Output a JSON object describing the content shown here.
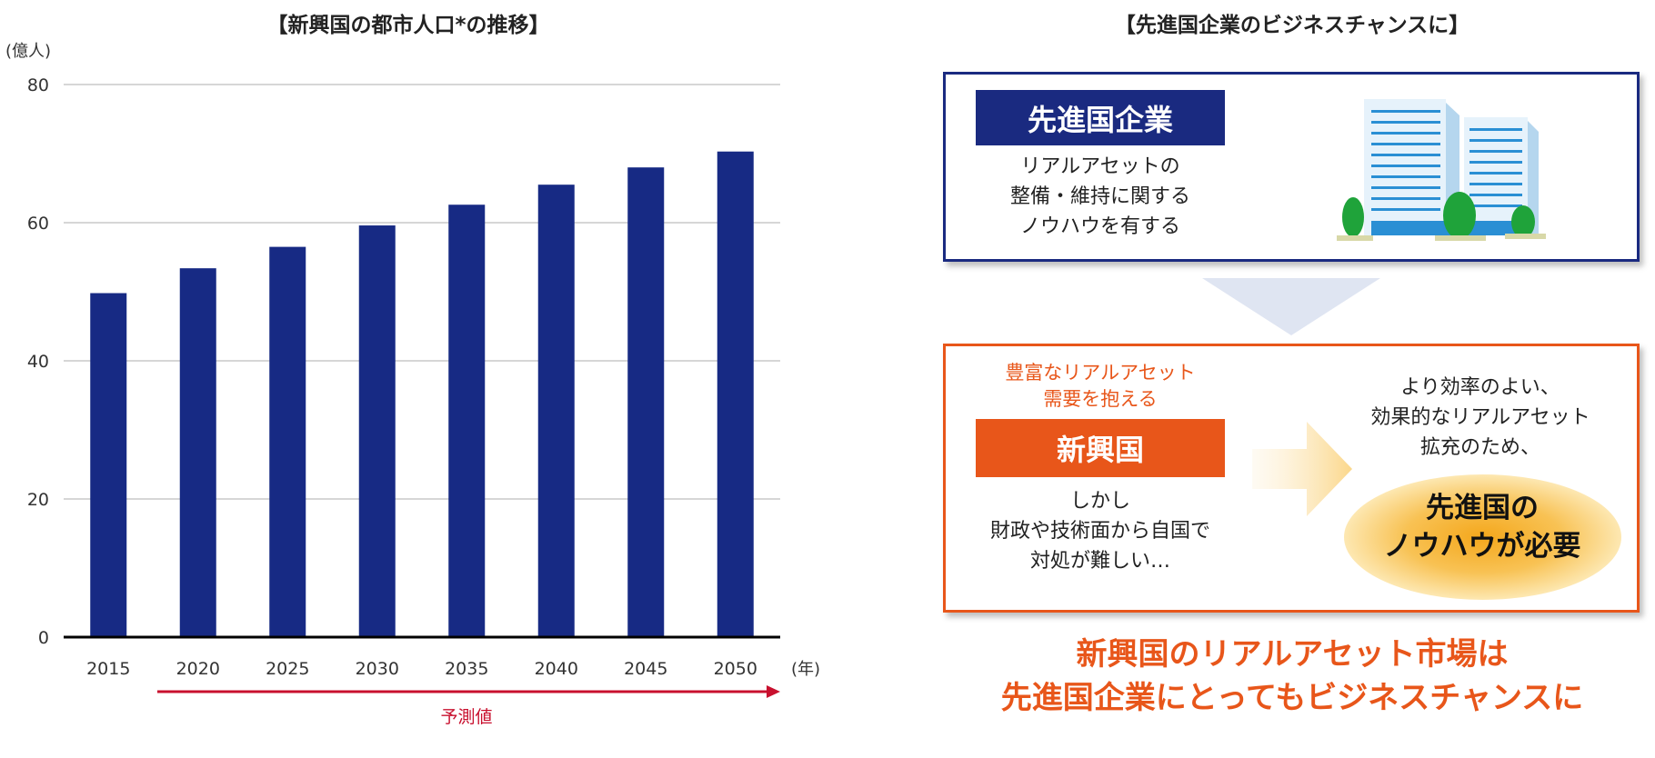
{
  "chart_data": {
    "type": "bar",
    "title": "【新興国の都市人口*の推移】",
    "ylabel": "(億人)",
    "xlabel": "(年)",
    "categories": [
      "2015",
      "2020",
      "2025",
      "2030",
      "2035",
      "2040",
      "2045",
      "2050"
    ],
    "values": [
      49.8,
      53.4,
      56.5,
      59.6,
      62.6,
      65.5,
      68.0,
      70.3
    ],
    "ylim": [
      0,
      80
    ],
    "yticks": [
      "0",
      "20",
      "40",
      "60",
      "80"
    ],
    "grid": true,
    "bar_color": "#172a84",
    "forecast_label": "予測値",
    "forecast_color": "#c8102e"
  },
  "diagram": {
    "title": "【先進国企業のビジネスチャンスに】",
    "developed": {
      "label": "先進国企業",
      "lines": [
        "リアルアセットの",
        "整備・維持に関する",
        "ノウハウを有する"
      ],
      "color": "#1a2a80"
    },
    "emerging": {
      "note_lines": [
        "豊富なリアルアセット",
        "需要を抱える"
      ],
      "label": "新興国",
      "lines": [
        "しかし",
        "財政や技術面から自国で",
        "対処が難しい…"
      ],
      "color": "#e8561a"
    },
    "right_lines": [
      "より効率のよい、",
      "効果的なリアルアセット",
      "拡充のため、"
    ],
    "highlight_lines": [
      "先進国の",
      "ノウハウが必要"
    ],
    "conclusion_lines": [
      "新興国のリアルアセット市場は",
      "先進国企業にとってもビジネスチャンスに"
    ]
  }
}
